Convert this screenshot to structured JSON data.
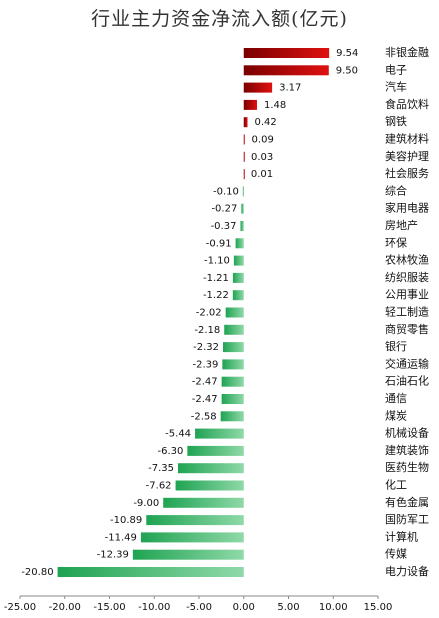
{
  "chart_data": {
    "type": "bar",
    "orientation": "horizontal",
    "title": "行业主力资金净流入额(亿元)",
    "xlim": [
      -25,
      15
    ],
    "xticks": [
      "-25.00",
      "-20.00",
      "-15.00",
      "-10.00",
      "-5.00",
      "0.00",
      "5.00",
      "10.00",
      "15.00"
    ],
    "categories": [
      "非银金融",
      "电子",
      "汽车",
      "食品饮料",
      "钢铁",
      "建筑材料",
      "美容护理",
      "社会服务",
      "综合",
      "家用电器",
      "房地产",
      "环保",
      "农林牧渔",
      "纺织服装",
      "公用事业",
      "轻工制造",
      "商贸零售",
      "银行",
      "交通运输",
      "石油石化",
      "通信",
      "煤炭",
      "机械设备",
      "建筑装饰",
      "医药生物",
      "化工",
      "有色金属",
      "国防军工",
      "计算机",
      "传媒",
      "电力设备"
    ],
    "values": [
      9.54,
      9.5,
      3.17,
      1.48,
      0.42,
      0.09,
      0.03,
      0.01,
      -0.1,
      -0.27,
      -0.37,
      -0.91,
      -1.1,
      -1.21,
      -1.22,
      -2.02,
      -2.18,
      -2.32,
      -2.39,
      -2.47,
      -2.47,
      -2.58,
      -5.44,
      -6.3,
      -7.35,
      -7.62,
      -9.0,
      -10.89,
      -11.49,
      -12.39,
      -20.8
    ],
    "value_labels": [
      "9.54",
      "9.50",
      "3.17",
      "1.48",
      "0.42",
      "0.09",
      "0.03",
      "0.01",
      "-0.10",
      "-0.27",
      "-0.37",
      "-0.91",
      "-1.10",
      "-1.21",
      "-1.22",
      "-2.02",
      "-2.18",
      "-2.32",
      "-2.39",
      "-2.47",
      "-2.47",
      "-2.58",
      "-5.44",
      "-6.30",
      "-7.35",
      "-7.62",
      "-9.00",
      "-10.89",
      "-11.49",
      "-12.39",
      "-20.80"
    ],
    "colors": {
      "positive": "#cc0000",
      "negative": "#22aa55"
    }
  }
}
